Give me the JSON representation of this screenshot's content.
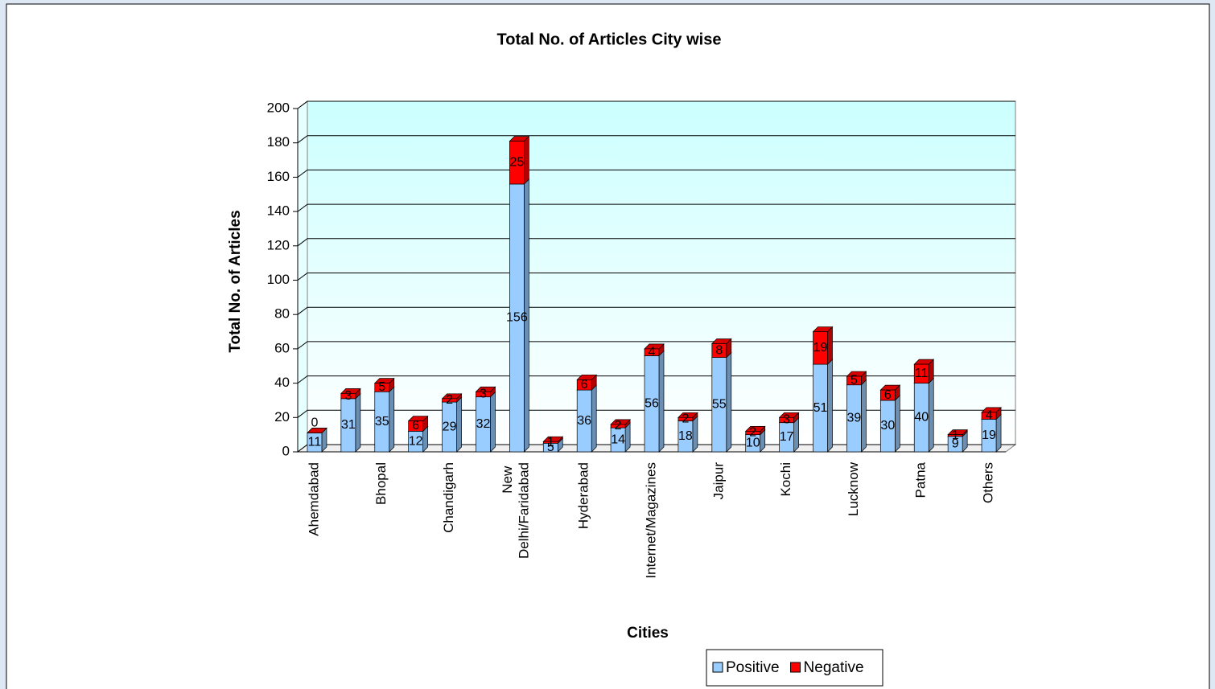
{
  "chart_data": {
    "type": "bar",
    "stacked": true,
    "title": "Total No. of Articles City wise",
    "x_label": "Cities",
    "y_label": "Total No. of Articles",
    "categories": [
      "Ahemdabad",
      null,
      "Bhopal",
      null,
      "Chandigarh",
      null,
      "New Delhi/Faridabad",
      null,
      "Hyderabad",
      null,
      "Internet/Magazines",
      null,
      "Jaipur",
      null,
      "Kochi",
      null,
      "Lucknow",
      null,
      "Patna",
      null,
      "Others"
    ],
    "series": [
      {
        "name": "Positive",
        "color": "#99ccff",
        "values": [
          11,
          31,
          35,
          12,
          29,
          32,
          156,
          5,
          36,
          14,
          56,
          18,
          55,
          10,
          17,
          51,
          39,
          30,
          40,
          9,
          19
        ]
      },
      {
        "name": "Negative",
        "color": "#ff0000",
        "values": [
          0,
          3,
          5,
          6,
          2,
          3,
          25,
          1,
          6,
          2,
          4,
          2,
          8,
          2,
          3,
          19,
          5,
          6,
          11,
          1,
          4
        ]
      }
    ],
    "ylim": [
      0,
      200
    ],
    "yticks": [
      0,
      20,
      40,
      60,
      80,
      100,
      120,
      140,
      160,
      180,
      200
    ],
    "grid": true,
    "legend": "bottom"
  }
}
